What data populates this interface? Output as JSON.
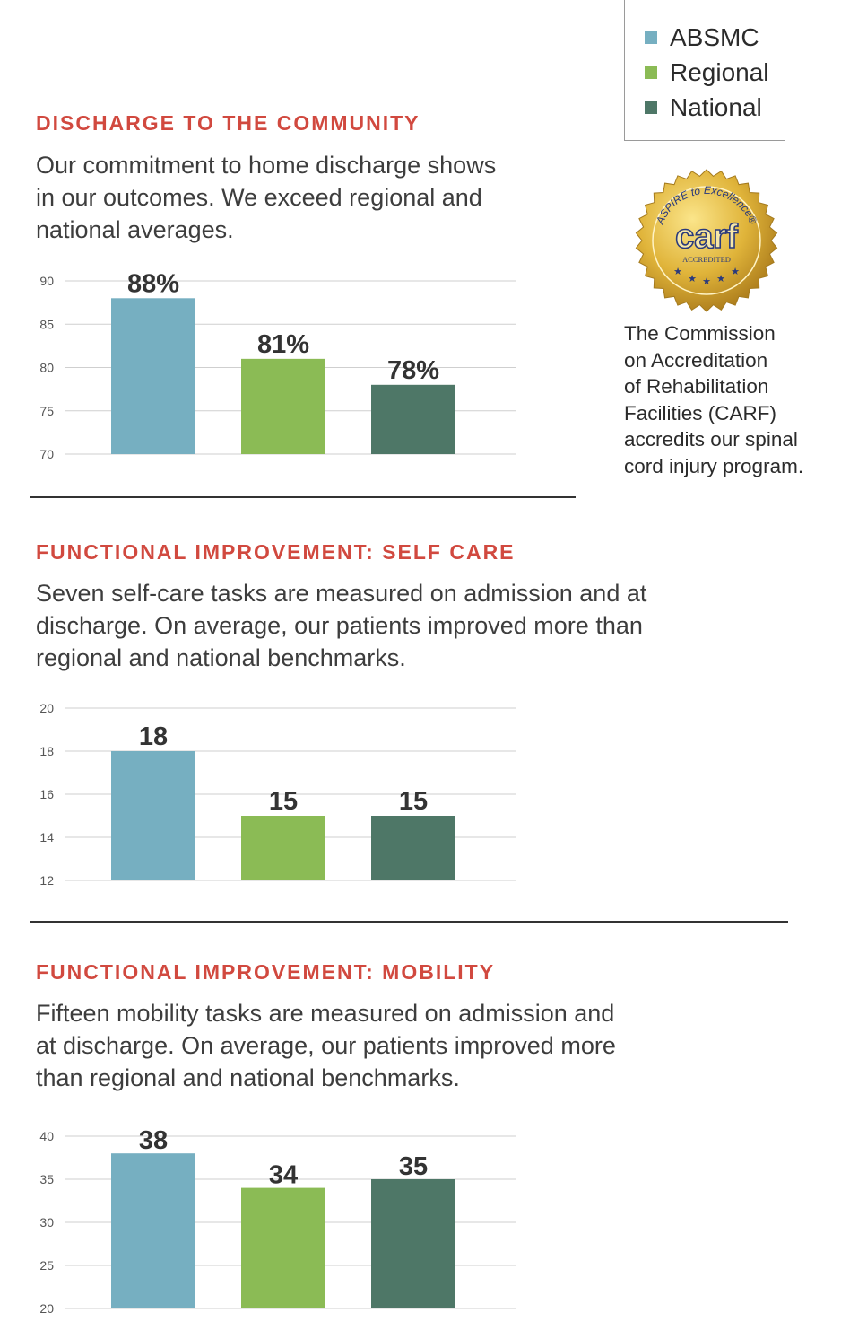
{
  "legend": {
    "items": [
      {
        "label": "ABSMC",
        "color": "#76afc1"
      },
      {
        "label": "Regional",
        "color": "#8bbb55"
      },
      {
        "label": "National",
        "color": "#4e7767"
      }
    ]
  },
  "sections": [
    {
      "title": "DISCHARGE TO THE COMMUNITY",
      "lines": [
        "Our commitment to home discharge shows",
        "in our outcomes. We exceed regional and",
        "national averages."
      ]
    },
    {
      "title": "FUNCTIONAL IMPROVEMENT: SELF CARE",
      "lines": [
        "Seven self-care tasks are measured on admission and at",
        "discharge. On average, our patients improved more than",
        "regional and national benchmarks."
      ]
    },
    {
      "title": "FUNCTIONAL IMPROVEMENT: MOBILITY",
      "lines": [
        "Fifteen mobility tasks are measured on admission and",
        "at discharge. On average, our patients improved more",
        "than regional and national benchmarks."
      ]
    }
  ],
  "carf": {
    "seal_texts": [
      "ASPIRE to Excellence®",
      "carf",
      "ACCREDITED"
    ],
    "description_lines": [
      "The Commission",
      "on Accreditation",
      "of Rehabilitation",
      "Facilities (CARF)",
      "accredits our spinal",
      "cord injury program."
    ],
    "seal_color": "#e0b43a"
  },
  "chart_data": [
    {
      "type": "bar",
      "categories": [
        "ABSMC",
        "Regional",
        "National"
      ],
      "values": [
        88,
        81,
        78
      ],
      "data_labels": [
        "88%",
        "81%",
        "78%"
      ],
      "ylim": [
        70,
        90
      ],
      "yticks": [
        70,
        75,
        80,
        85,
        90
      ],
      "grid": true,
      "colors": [
        "#76afc1",
        "#8bbb55",
        "#4e7767"
      ]
    },
    {
      "type": "bar",
      "categories": [
        "ABSMC",
        "Regional",
        "National"
      ],
      "values": [
        18,
        15,
        15
      ],
      "data_labels": [
        "18",
        "15",
        "15"
      ],
      "ylim": [
        12,
        20
      ],
      "yticks": [
        12,
        14,
        16,
        18,
        20
      ],
      "grid": true,
      "colors": [
        "#76afc1",
        "#8bbb55",
        "#4e7767"
      ]
    },
    {
      "type": "bar",
      "categories": [
        "ABSMC",
        "Regional",
        "National"
      ],
      "values": [
        38,
        34,
        35
      ],
      "data_labels": [
        "38",
        "34",
        "35"
      ],
      "ylim": [
        20,
        40
      ],
      "yticks": [
        20,
        25,
        30,
        35,
        40
      ],
      "grid": true,
      "colors": [
        "#76afc1",
        "#8bbb55",
        "#4e7767"
      ]
    }
  ]
}
